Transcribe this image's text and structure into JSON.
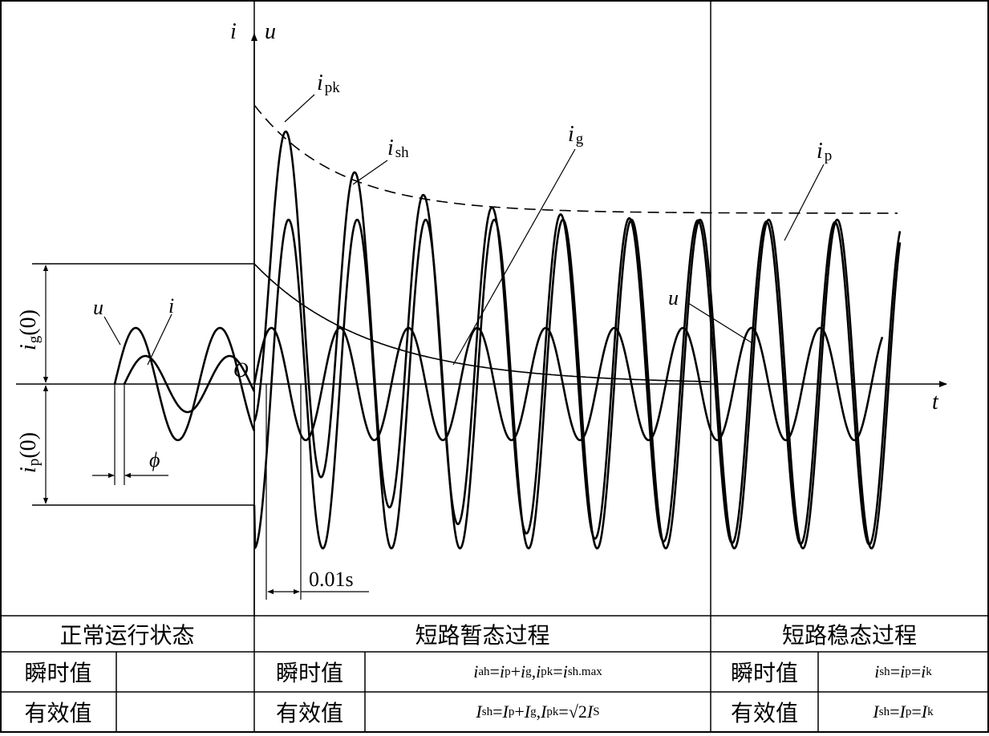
{
  "diagram": {
    "axis_labels": {
      "i": "i",
      "u": "u",
      "t": "t",
      "origin": "O"
    },
    "curve_labels": {
      "u_left": "u",
      "i_left": "i",
      "ipk_base": "i",
      "ipk_sub": "pk",
      "ish_base": "i",
      "ish_sub": "sh",
      "ig_base": "i",
      "ig_sub": "g",
      "ip_base": "i",
      "ip_sub": "p",
      "u_right": "u"
    },
    "dimension_labels": {
      "ig0_base": "i",
      "ig0_sub": "g",
      "ig0_paren": "(0)",
      "ip0_base": "i",
      "ip0_sub": "p",
      "ip0_paren": "(0)",
      "phi": "ϕ",
      "interval": "0.01s"
    }
  },
  "table": {
    "sections": {
      "normal": "正常运行状态",
      "transient": "短路暂态过程",
      "steady": "短路稳态过程"
    },
    "row_labels": {
      "instant": "瞬时值",
      "rms": "有效值"
    },
    "normal_instant_value": "",
    "normal_rms_value": "",
    "transient_instant": {
      "t1": "i",
      "s1": "ah",
      "t2": " = ",
      "t3": "i",
      "s3": "p",
      "t4": "+",
      "t5": "i",
      "s5": "g",
      "t6": ", ",
      "t7": "i",
      "s7": "pk",
      "t8": "= ",
      "t9": "i",
      "s9": "sh.max"
    },
    "transient_rms": {
      "t1": "I",
      "s1": "sh",
      "t2": " = ",
      "t3": "I",
      "s3": "p",
      "t4": "+",
      "t5": "I",
      "s5": "g",
      "t6": ", ",
      "t7": "I",
      "s7": "pk",
      "t8": " =",
      "t9": "√2",
      "t10": "I",
      "s10": "S"
    },
    "steady_instant": {
      "t1": "i",
      "s1": "sh",
      "t2": " = ",
      "t3": "i",
      "s3": "p",
      "t4": " = ",
      "t5": "i",
      "s5": "k"
    },
    "steady_rms": {
      "t1": "I",
      "s1": "sh",
      "t2": " = ",
      "t3": "I",
      "s3": "p",
      "t4": " = ",
      "t5": "I",
      "s5": "k"
    }
  }
}
